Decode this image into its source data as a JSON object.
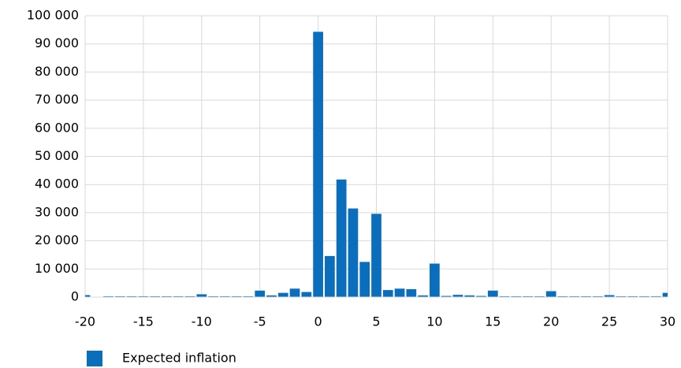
{
  "chart_data": {
    "type": "bar",
    "x": [
      -20,
      -19,
      -18,
      -17,
      -16,
      -15,
      -14,
      -13,
      -12,
      -11,
      -10,
      -9,
      -8,
      -7,
      -6,
      -5,
      -4,
      -3,
      -2,
      -1,
      0,
      1,
      2,
      3,
      4,
      5,
      6,
      7,
      8,
      9,
      10,
      11,
      12,
      13,
      14,
      15,
      16,
      17,
      18,
      19,
      20,
      21,
      22,
      23,
      24,
      25,
      26,
      27,
      28,
      29,
      30
    ],
    "series": [
      {
        "name": "Expected inflation",
        "color": "#0a6ebd",
        "values": [
          700,
          0,
          300,
          300,
          300,
          300,
          300,
          300,
          300,
          300,
          1000,
          300,
          300,
          300,
          300,
          2300,
          600,
          1500,
          3000,
          1800,
          94300,
          14600,
          41800,
          31500,
          12500,
          29600,
          2500,
          3000,
          2800,
          600,
          11900,
          400,
          800,
          600,
          400,
          2300,
          300,
          300,
          300,
          300,
          2100,
          300,
          300,
          300,
          300,
          700,
          300,
          300,
          300,
          300,
          1500
        ]
      }
    ],
    "xlim": [
      -20,
      30
    ],
    "xticks": [
      -20,
      -15,
      -10,
      -5,
      0,
      5,
      10,
      15,
      20,
      25,
      30
    ],
    "ylim": [
      0,
      100000
    ],
    "yticks": [
      0,
      {
        "value": 10000,
        "label": "10 000"
      },
      {
        "value": 20000,
        "label": "20 000"
      },
      {
        "value": 30000,
        "label": "30 000"
      },
      {
        "value": 40000,
        "label": "40 000"
      },
      {
        "value": 50000,
        "label": "50 000"
      },
      {
        "value": 60000,
        "label": "60 000"
      },
      {
        "value": 70000,
        "label": "70 000"
      },
      {
        "value": 80000,
        "label": "80 000"
      },
      {
        "value": 90000,
        "label": "90 000"
      },
      {
        "value": 100000,
        "label": "100 000"
      }
    ],
    "grid": true,
    "legend": "bottom-left"
  }
}
